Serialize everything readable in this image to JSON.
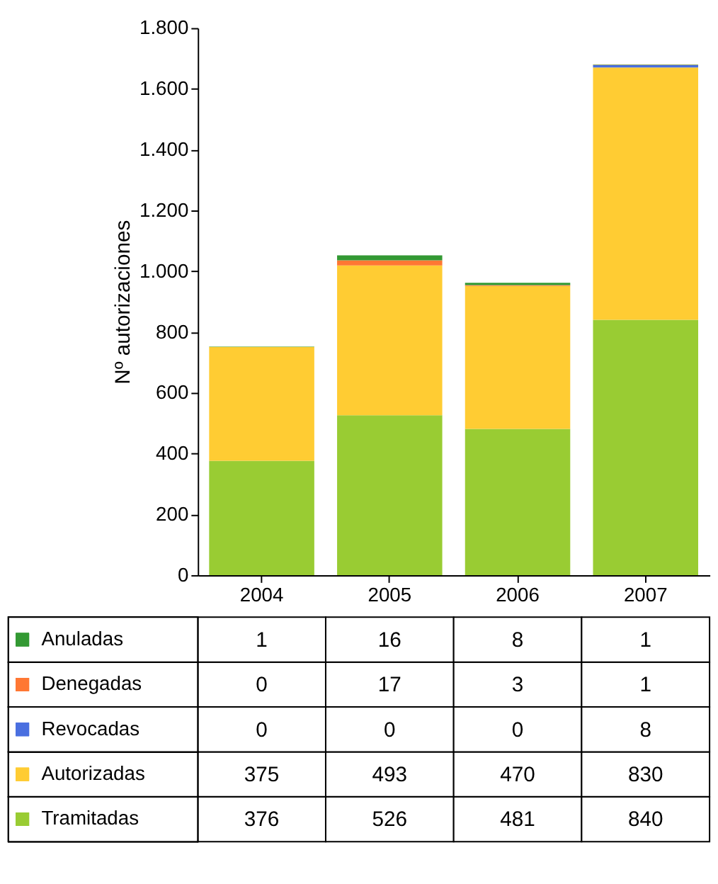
{
  "chart_data": {
    "type": "bar",
    "stacked": true,
    "ylabel": "Nº autorizaciones",
    "categories": [
      "2004",
      "2005",
      "2006",
      "2007"
    ],
    "series": [
      {
        "name": "Tramitadas",
        "color": "#99cc33",
        "values": [
          376,
          526,
          481,
          840
        ]
      },
      {
        "name": "Autorizadas",
        "color": "#ffcc33",
        "values": [
          375,
          493,
          470,
          830
        ]
      },
      {
        "name": "Revocadas",
        "color": "#4a6fe0",
        "values": [
          0,
          0,
          0,
          8
        ]
      },
      {
        "name": "Denegadas",
        "color": "#ff7733",
        "values": [
          0,
          17,
          3,
          1
        ]
      },
      {
        "name": "Anuladas",
        "color": "#339933",
        "values": [
          1,
          16,
          8,
          1
        ]
      }
    ],
    "ylim": [
      0,
      1800
    ],
    "yticks": [
      0,
      200,
      400,
      600,
      800,
      {
        "value": 1000,
        "label": "1.000"
      },
      {
        "value": 1200,
        "label": "1.200"
      },
      {
        "value": 1400,
        "label": "1.400"
      },
      {
        "value": 1600,
        "label": "1.600"
      },
      {
        "value": 1800,
        "label": "1.800"
      }
    ],
    "grid": false,
    "data_labels": true,
    "legend": "bottom"
  }
}
